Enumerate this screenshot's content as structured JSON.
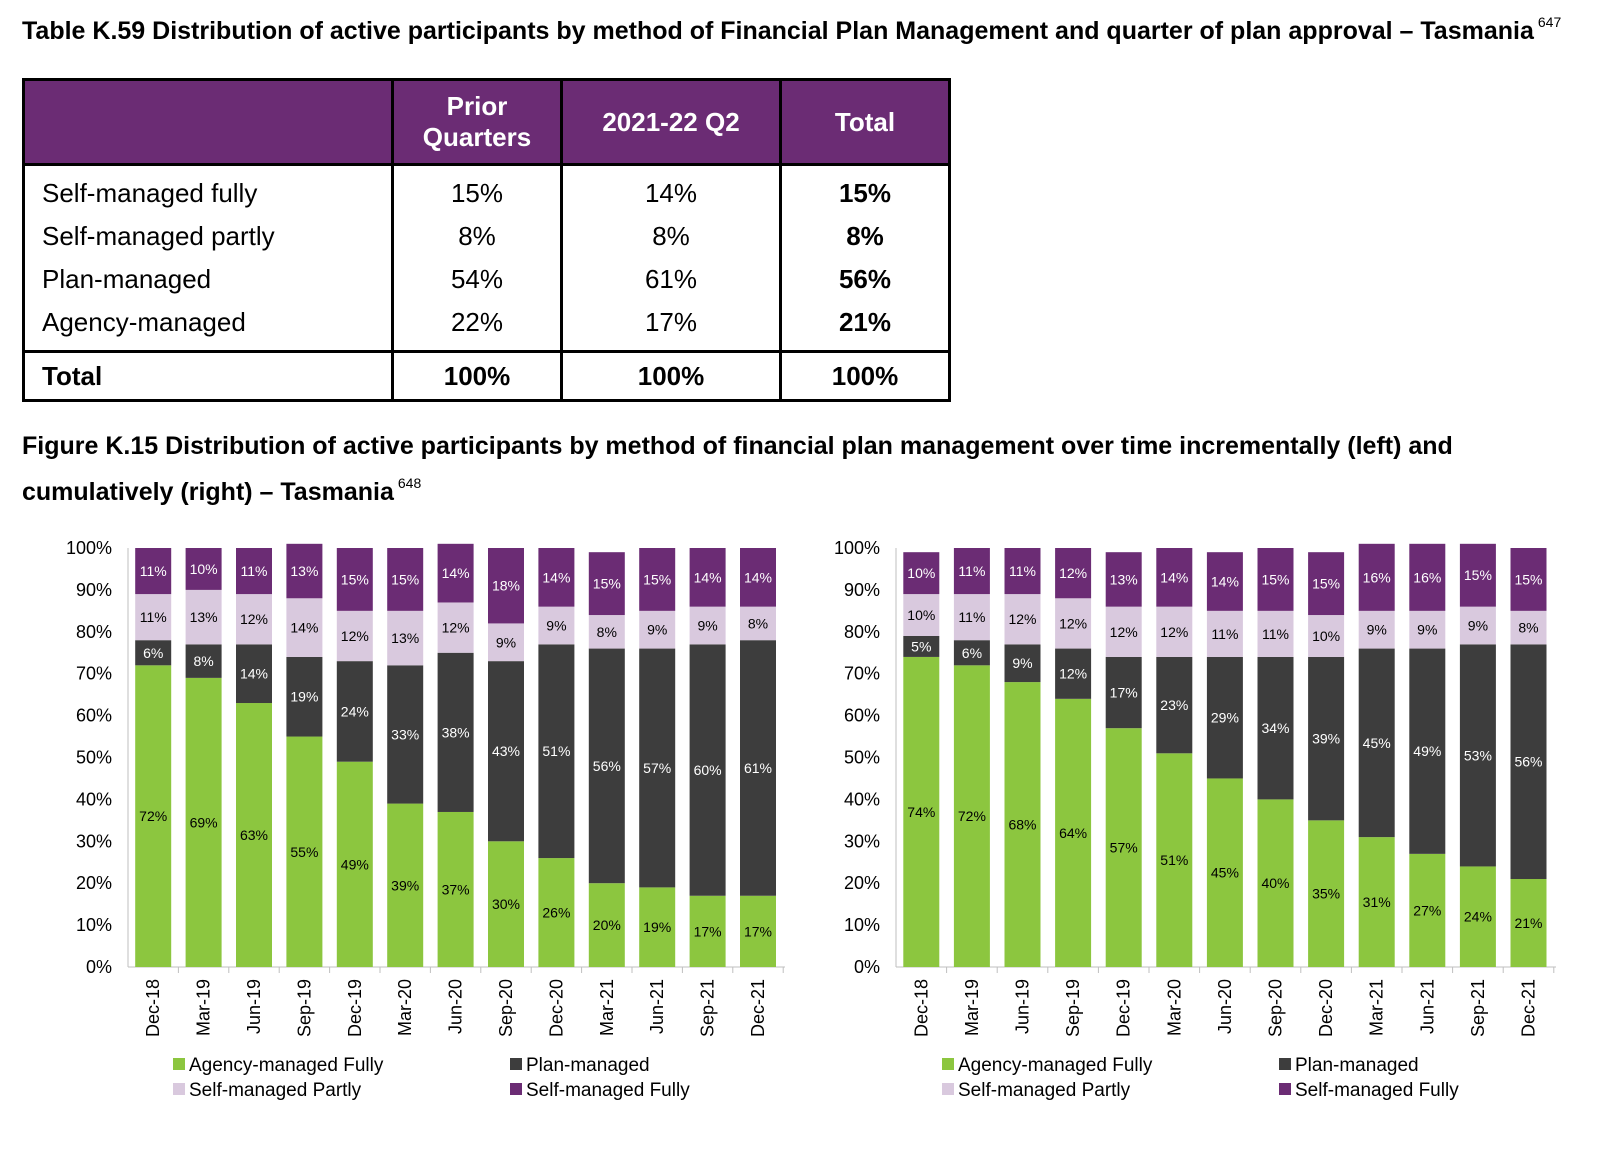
{
  "table": {
    "title": "Table K.59 Distribution of active participants by method of Financial Plan Management and quarter of plan approval – Tasmania",
    "footnote": "647",
    "columns": [
      "",
      "Prior Quarters",
      "2021-22 Q2",
      "Total"
    ],
    "rows": [
      {
        "label": "Self-managed fully",
        "prior": "15%",
        "q2": "14%",
        "total": "15%"
      },
      {
        "label": "Self-managed partly",
        "prior": "8%",
        "q2": "8%",
        "total": "8%"
      },
      {
        "label": "Plan-managed",
        "prior": "54%",
        "q2": "61%",
        "total": "56%"
      },
      {
        "label": "Agency-managed",
        "prior": "22%",
        "q2": "17%",
        "total": "21%"
      }
    ],
    "total_row": {
      "label": "Total",
      "prior": "100%",
      "q2": "100%",
      "total": "100%"
    }
  },
  "figure": {
    "title": "Figure K.15 Distribution of active participants by method of financial plan management over time incrementally (left) and cumulatively (right) – Tasmania",
    "footnote": "648"
  },
  "colors": {
    "header_purple": "#6b2c74",
    "Agency-managed Fully": "#8cc63f",
    "Plan-managed": "#3d3d3d",
    "Self-managed Partly": "#d9c9de",
    "Self-managed Fully": "#6b2c74"
  },
  "chart_data": [
    {
      "type": "bar",
      "stacked": true,
      "title": "",
      "yticks": [
        "0%",
        "10%",
        "20%",
        "30%",
        "40%",
        "50%",
        "60%",
        "70%",
        "80%",
        "90%",
        "100%"
      ],
      "ylim": [
        0,
        100
      ],
      "categories": [
        "Dec-18",
        "Mar-19",
        "Jun-19",
        "Sep-19",
        "Dec-19",
        "Mar-20",
        "Jun-20",
        "Sep-20",
        "Dec-20",
        "Mar-21",
        "Jun-21",
        "Sep-21",
        "Dec-21"
      ],
      "series": [
        {
          "name": "Agency-managed Fully",
          "values": [
            72,
            69,
            63,
            55,
            49,
            39,
            37,
            30,
            26,
            20,
            19,
            17,
            17
          ]
        },
        {
          "name": "Plan-managed",
          "values": [
            6,
            8,
            14,
            19,
            24,
            33,
            38,
            43,
            51,
            56,
            57,
            60,
            61
          ]
        },
        {
          "name": "Self-managed Partly",
          "values": [
            11,
            13,
            12,
            14,
            12,
            13,
            12,
            9,
            9,
            8,
            9,
            9,
            8
          ]
        },
        {
          "name": "Self-managed Fully",
          "values": [
            11,
            10,
            11,
            13,
            15,
            15,
            14,
            18,
            14,
            15,
            15,
            14,
            14
          ]
        }
      ],
      "legend_position": "bottom"
    },
    {
      "type": "bar",
      "stacked": true,
      "title": "",
      "yticks": [
        "0%",
        "10%",
        "20%",
        "30%",
        "40%",
        "50%",
        "60%",
        "70%",
        "80%",
        "90%",
        "100%"
      ],
      "ylim": [
        0,
        100
      ],
      "categories": [
        "Dec-18",
        "Mar-19",
        "Jun-19",
        "Sep-19",
        "Dec-19",
        "Mar-20",
        "Jun-20",
        "Sep-20",
        "Dec-20",
        "Mar-21",
        "Jun-21",
        "Sep-21",
        "Dec-21"
      ],
      "series": [
        {
          "name": "Agency-managed Fully",
          "values": [
            74,
            72,
            68,
            64,
            57,
            51,
            45,
            40,
            35,
            31,
            27,
            24,
            21
          ]
        },
        {
          "name": "Plan-managed",
          "values": [
            5,
            6,
            9,
            12,
            17,
            23,
            29,
            34,
            39,
            45,
            49,
            53,
            56
          ]
        },
        {
          "name": "Self-managed Partly",
          "values": [
            10,
            11,
            12,
            12,
            12,
            12,
            11,
            11,
            10,
            9,
            9,
            9,
            8
          ]
        },
        {
          "name": "Self-managed Fully",
          "values": [
            10,
            11,
            11,
            12,
            13,
            14,
            14,
            15,
            15,
            16,
            16,
            15,
            15
          ]
        }
      ],
      "legend_position": "bottom"
    }
  ]
}
